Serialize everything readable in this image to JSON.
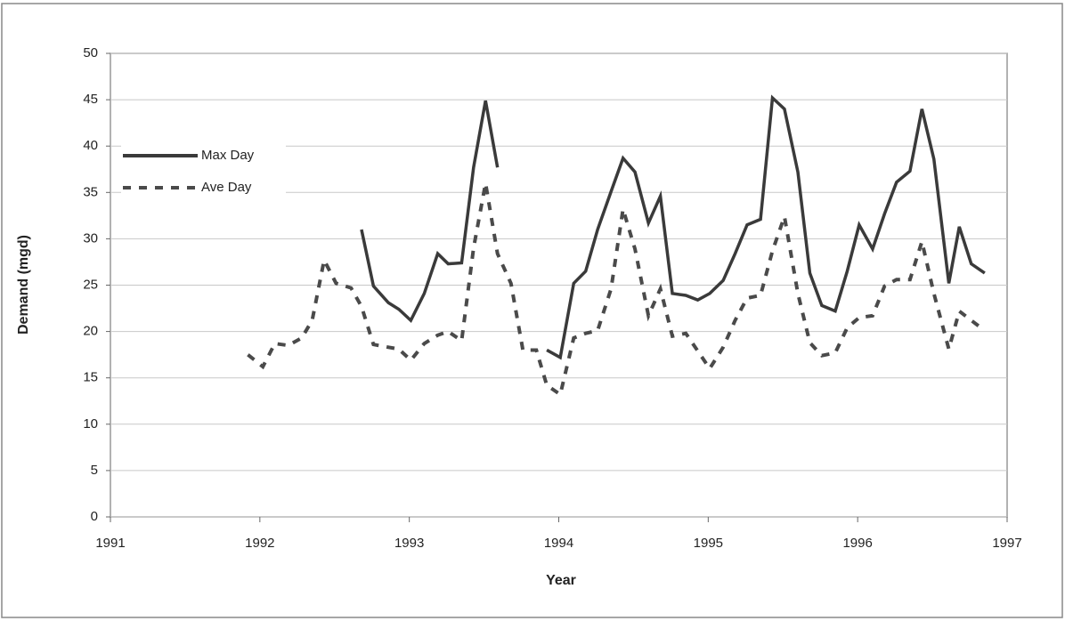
{
  "chart_data": {
    "type": "line",
    "x_label": "Year",
    "y_label": "Demand (mgd)",
    "x": [
      1991.92,
      1992.02,
      1992.1,
      1992.19,
      1992.28,
      1992.35,
      1992.43,
      1992.51,
      1992.61,
      1992.68,
      1992.76,
      1992.86,
      1992.93,
      1993.01,
      1993.1,
      1993.19,
      1993.26,
      1993.35,
      1993.43,
      1993.51,
      1993.59,
      1993.68,
      1993.76,
      1993.85,
      1993.92,
      1994.01,
      1994.1,
      1994.18,
      1994.26,
      1994.35,
      1994.43,
      1994.51,
      1994.6,
      1994.68,
      1994.76,
      1994.85,
      1994.93,
      1995.01,
      1995.1,
      1995.18,
      1995.26,
      1995.35,
      1995.43,
      1995.51,
      1995.6,
      1995.68,
      1995.76,
      1995.85,
      1995.93,
      1996.01,
      1996.1,
      1996.18,
      1996.26,
      1996.35,
      1996.43,
      1996.51,
      1996.61,
      1996.68,
      1996.76,
      1996.85
    ],
    "series": [
      {
        "name": "Max Day",
        "color": "#3a3a3a",
        "dash": false,
        "values": [
          null,
          null,
          null,
          null,
          null,
          null,
          null,
          null,
          null,
          31,
          24.9,
          23.1,
          22.4,
          21.2,
          24.1,
          28.4,
          27.3,
          27.4,
          37.7,
          44.9,
          37.7,
          null,
          null,
          null,
          18,
          17.2,
          25.2,
          26.5,
          31,
          35.1,
          38.7,
          37.2,
          31.7,
          34.6,
          24.1,
          23.9,
          23.4,
          24.1,
          25.5,
          28.4,
          31.5,
          32.1,
          45.2,
          44,
          37.2,
          26.3,
          22.8,
          22.2,
          26.5,
          31.5,
          28.9,
          32.7,
          36.1,
          37.3,
          44,
          38.6,
          25.2,
          31.3,
          27.3,
          26.3
        ]
      },
      {
        "name": "Ave Day",
        "color": "#4a4a4a",
        "dash": true,
        "values": [
          17.5,
          16.2,
          18.7,
          18.5,
          19.3,
          21.2,
          27.7,
          25.2,
          24.7,
          22.7,
          18.6,
          18.3,
          18.1,
          16.9,
          18.7,
          19.6,
          20.0,
          19.0,
          29,
          36,
          28.4,
          25.2,
          18,
          18,
          14.2,
          13.2,
          19.3,
          19.8,
          20.1,
          24.6,
          33.2,
          28.9,
          21.7,
          24.6,
          19.5,
          19.8,
          17.9,
          16,
          18.3,
          21.2,
          23.6,
          23.9,
          28.7,
          32.4,
          24.1,
          18.8,
          17.4,
          17.7,
          20.4,
          21.5,
          21.7,
          24.9,
          25.6,
          25.6,
          29.7,
          24.1,
          18.1,
          22.2,
          21.2,
          20.1
        ]
      }
    ],
    "xlim": [
      1991,
      1997
    ],
    "xticks": [
      1991,
      1992,
      1993,
      1994,
      1995,
      1996,
      1997
    ],
    "ylim": [
      0,
      50
    ],
    "yticks": [
      0,
      5,
      10,
      15,
      20,
      25,
      30,
      35,
      40,
      45,
      50
    ],
    "grid": true,
    "legend": "upper left"
  }
}
